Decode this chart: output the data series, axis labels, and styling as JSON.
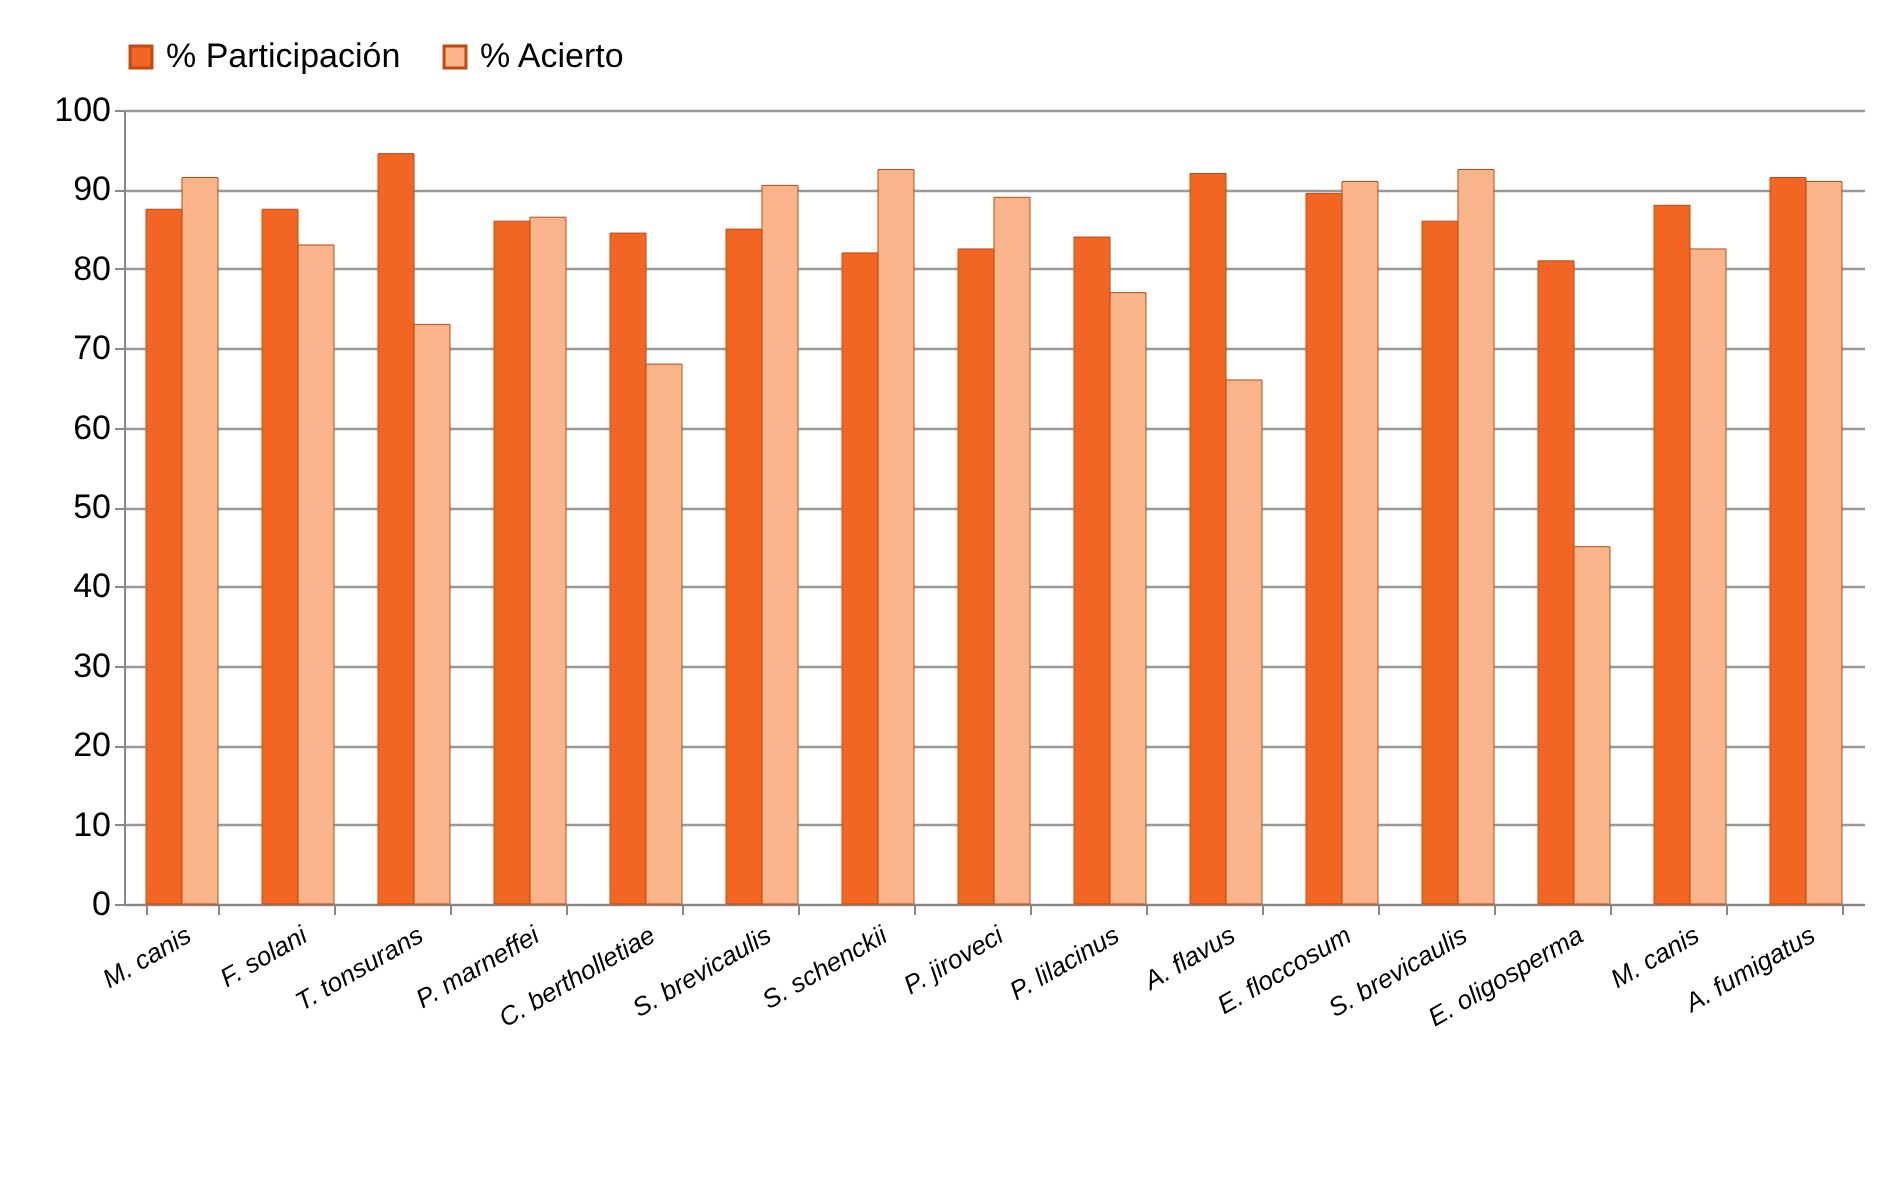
{
  "chart_data": {
    "type": "bar",
    "categories": [
      "M. canis",
      "F. solani",
      "T. tonsurans",
      "P. marneffei",
      "C. bertholletiae",
      "S. brevicaulis",
      "S. schenckii",
      "P. jiroveci",
      "P. lilacinus",
      "A. flavus",
      "E. floccosum",
      "S. brevicaulis",
      "E. oligosperma",
      "M. canis",
      "A. fumigatus"
    ],
    "series": [
      {
        "name": "% Participación",
        "color": "#f26522",
        "values": [
          87.5,
          87.5,
          94.5,
          86,
          84.5,
          85,
          82,
          82.5,
          84,
          92,
          89.5,
          86,
          81,
          88,
          91.5
        ]
      },
      {
        "name": "% Acierto",
        "color": "#f9b48a",
        "values": [
          91.5,
          83,
          73,
          86.5,
          68,
          90.5,
          92.5,
          89,
          77,
          66,
          91,
          92.5,
          45,
          82.5,
          91
        ]
      }
    ],
    "ylim": [
      0,
      100
    ],
    "yticks": [
      0,
      10,
      20,
      30,
      40,
      50,
      60,
      70,
      80,
      90,
      100
    ],
    "grid": "y",
    "legend": "top"
  }
}
